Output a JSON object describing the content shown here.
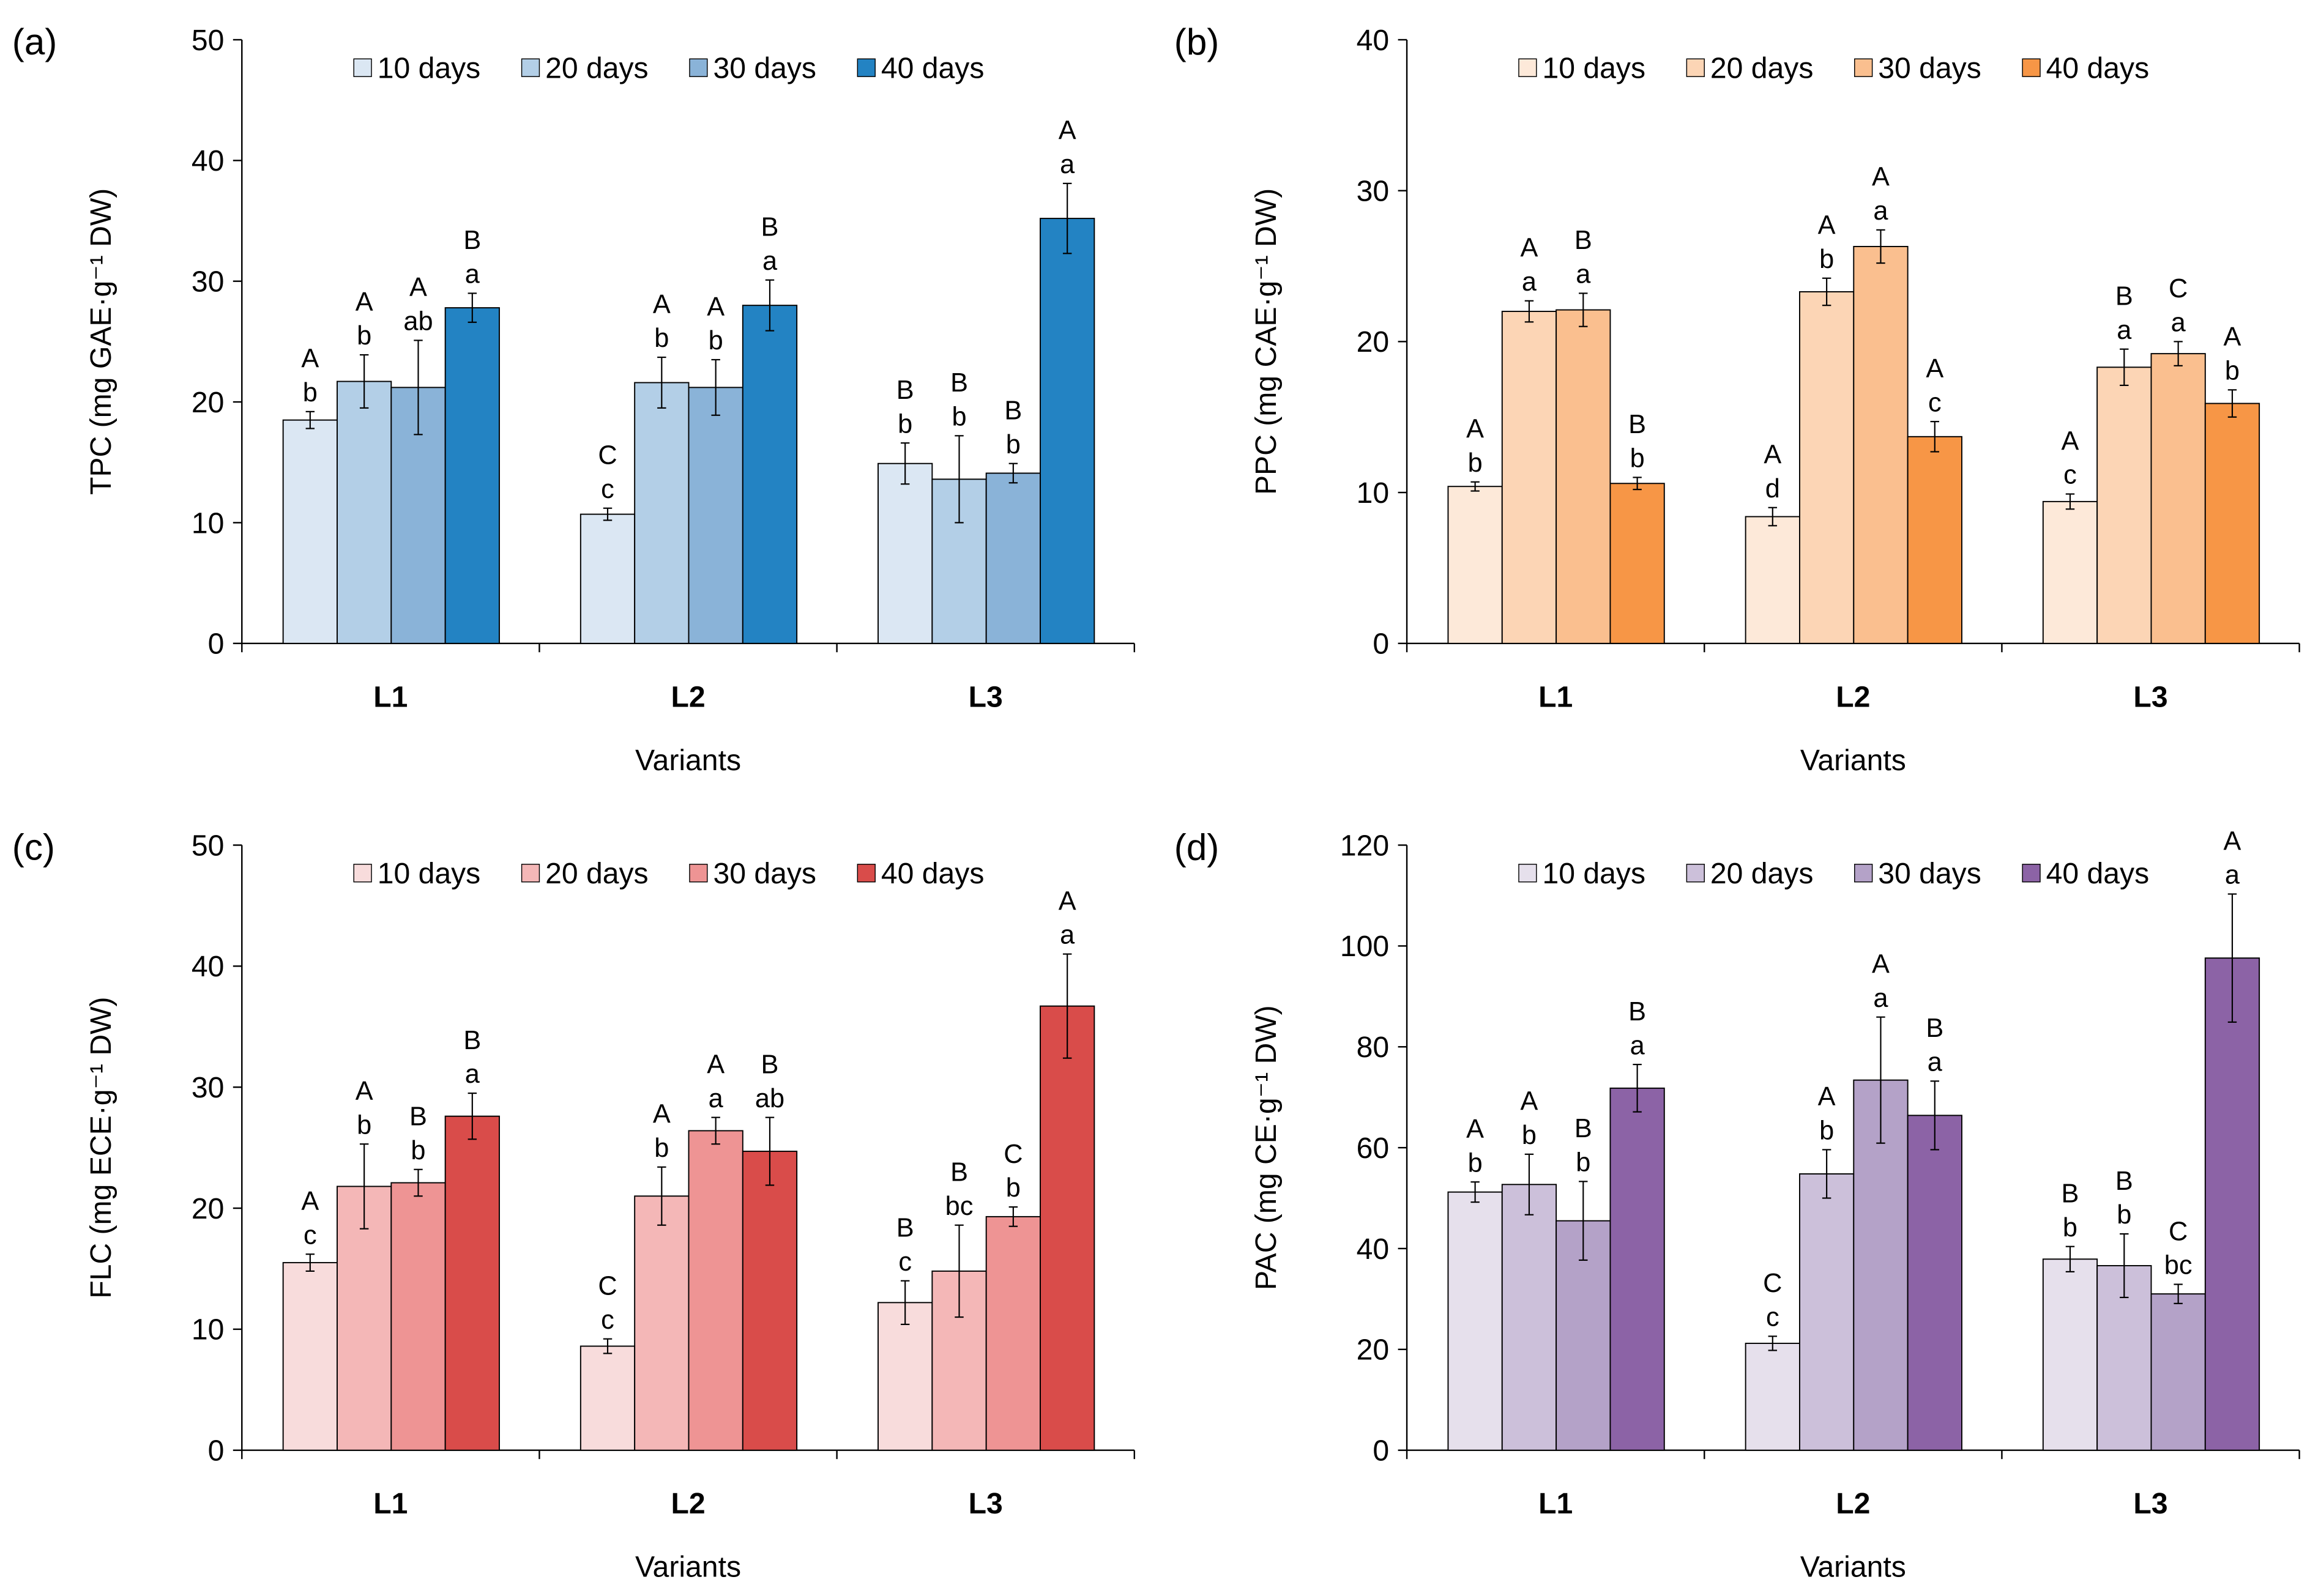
{
  "chart_data": [
    {
      "type": "bar",
      "panel_label": "(a)",
      "panel_label_letter": "a",
      "ylabel": "TPC (mg GAE·g⁻¹ DW)",
      "xlabel": "Variants",
      "categories": [
        "L1",
        "L2",
        "L3"
      ],
      "ylim": [
        0,
        50
      ],
      "yticks": [
        0,
        10,
        20,
        30,
        40,
        50
      ],
      "legend_position": "top",
      "grid": false,
      "series": [
        {
          "name": "10 days",
          "color": "#dbe7f3",
          "values": [
            18.5,
            10.7,
            14.9
          ],
          "errors": [
            0.7,
            0.5,
            1.7
          ],
          "letters_upper": [
            "A",
            "C",
            "B"
          ],
          "letters_lower": [
            "b",
            "c",
            "b"
          ]
        },
        {
          "name": "20 days",
          "color": "#b3cfe7",
          "values": [
            21.7,
            21.6,
            13.6
          ],
          "errors": [
            2.2,
            2.1,
            3.6
          ],
          "letters_upper": [
            "A",
            "A",
            "B"
          ],
          "letters_lower": [
            "b",
            "b",
            "b"
          ]
        },
        {
          "name": "30 days",
          "color": "#8ab3d8",
          "values": [
            21.2,
            21.2,
            14.1
          ],
          "errors": [
            3.9,
            2.3,
            0.8
          ],
          "letters_upper": [
            "A",
            "A",
            "B"
          ],
          "letters_lower": [
            "ab",
            "b",
            "b"
          ]
        },
        {
          "name": "40 days",
          "color": "#2383c3",
          "values": [
            27.8,
            28.0,
            35.2
          ],
          "errors": [
            1.2,
            2.1,
            2.9
          ],
          "letters_upper": [
            "B",
            "B",
            "A"
          ],
          "letters_lower": [
            "a",
            "a",
            "a"
          ]
        }
      ]
    },
    {
      "type": "bar",
      "panel_label": "(b)",
      "panel_label_letter": "b",
      "ylabel": "PPC (mg CAE·g⁻¹ DW)",
      "xlabel": "Variants",
      "categories": [
        "L1",
        "L2",
        "L3"
      ],
      "ylim": [
        0,
        40
      ],
      "yticks": [
        0,
        10,
        20,
        30,
        40
      ],
      "legend_position": "top",
      "grid": false,
      "series": [
        {
          "name": "10 days",
          "color": "#fde9d9",
          "values": [
            10.4,
            8.4,
            9.4
          ],
          "errors": [
            0.3,
            0.6,
            0.5
          ],
          "letters_upper": [
            "A",
            "A",
            "A"
          ],
          "letters_lower": [
            "b",
            "d",
            "c"
          ]
        },
        {
          "name": "20 days",
          "color": "#fcd5b5",
          "values": [
            22.0,
            23.3,
            18.3
          ],
          "errors": [
            0.7,
            0.9,
            1.2
          ],
          "letters_upper": [
            "A",
            "A",
            "B"
          ],
          "letters_lower": [
            "a",
            "b",
            "a"
          ]
        },
        {
          "name": "30 days",
          "color": "#fabf8f",
          "values": [
            22.1,
            26.3,
            19.2
          ],
          "errors": [
            1.1,
            1.1,
            0.8
          ],
          "letters_upper": [
            "B",
            "A",
            "C"
          ],
          "letters_lower": [
            "a",
            "a",
            "a"
          ]
        },
        {
          "name": "40 days",
          "color": "#f79646",
          "values": [
            10.6,
            13.7,
            15.9
          ],
          "errors": [
            0.4,
            1.0,
            0.9
          ],
          "letters_upper": [
            "B",
            "A",
            "A"
          ],
          "letters_lower": [
            "b",
            "c",
            "b"
          ]
        }
      ]
    },
    {
      "type": "bar",
      "panel_label": "(c)",
      "panel_label_letter": "c",
      "ylabel": "FLC (mg ECE·g⁻¹ DW)",
      "xlabel": "Variants",
      "categories": [
        "L1",
        "L2",
        "L3"
      ],
      "ylim": [
        0,
        50
      ],
      "yticks": [
        0,
        10,
        20,
        30,
        40,
        50
      ],
      "legend_position": "top",
      "grid": false,
      "series": [
        {
          "name": "10 days",
          "color": "#f8dcdc",
          "values": [
            15.5,
            8.6,
            12.2
          ],
          "errors": [
            0.7,
            0.6,
            1.8
          ],
          "letters_upper": [
            "A",
            "C",
            "B"
          ],
          "letters_lower": [
            "c",
            "c",
            "c"
          ]
        },
        {
          "name": "20 days",
          "color": "#f4b7b7",
          "values": [
            21.8,
            21.0,
            14.8
          ],
          "errors": [
            3.5,
            2.4,
            3.8
          ],
          "letters_upper": [
            "A",
            "A",
            "B"
          ],
          "letters_lower": [
            "b",
            "b",
            "bc"
          ]
        },
        {
          "name": "30 days",
          "color": "#ee9494",
          "values": [
            22.1,
            26.4,
            19.3
          ],
          "errors": [
            1.1,
            1.1,
            0.8
          ],
          "letters_upper": [
            "B",
            "A",
            "C"
          ],
          "letters_lower": [
            "b",
            "a",
            "b"
          ]
        },
        {
          "name": "40 days",
          "color": "#d94c4a",
          "values": [
            27.6,
            24.7,
            36.7
          ],
          "errors": [
            1.9,
            2.8,
            4.3
          ],
          "letters_upper": [
            "B",
            "B",
            "A"
          ],
          "letters_lower": [
            "a",
            "ab",
            "a"
          ]
        }
      ]
    },
    {
      "type": "bar",
      "panel_label": "(d)",
      "panel_label_letter": "d",
      "ylabel": "PAC (mg CE·g⁻¹ DW)",
      "xlabel": "Variants",
      "categories": [
        "L1",
        "L2",
        "L3"
      ],
      "ylim": [
        0,
        120
      ],
      "yticks": [
        0,
        20,
        40,
        60,
        80,
        100,
        120
      ],
      "legend_position": "top",
      "grid": false,
      "series": [
        {
          "name": "10 days",
          "color": "#e6e0ec",
          "values": [
            51.2,
            21.2,
            37.9
          ],
          "errors": [
            2.0,
            1.4,
            2.5
          ],
          "letters_upper": [
            "A",
            "C",
            "B"
          ],
          "letters_lower": [
            "b",
            "c",
            "b"
          ]
        },
        {
          "name": "20 days",
          "color": "#ccc0da",
          "values": [
            52.7,
            54.8,
            36.6
          ],
          "errors": [
            6.0,
            4.8,
            6.3
          ],
          "letters_upper": [
            "A",
            "A",
            "B"
          ],
          "letters_lower": [
            "b",
            "b",
            "b"
          ]
        },
        {
          "name": "30 days",
          "color": "#b4a2c8",
          "values": [
            45.5,
            73.4,
            31.0
          ],
          "errors": [
            7.8,
            12.5,
            1.9
          ],
          "letters_upper": [
            "B",
            "A",
            "C"
          ],
          "letters_lower": [
            "b",
            "a",
            "bc"
          ]
        },
        {
          "name": "40 days",
          "color": "#8c63a6",
          "values": [
            71.8,
            66.4,
            97.6
          ],
          "errors": [
            4.7,
            6.8,
            12.7
          ],
          "letters_upper": [
            "B",
            "B",
            "A"
          ],
          "letters_lower": [
            "a",
            "a",
            "a"
          ]
        }
      ]
    }
  ]
}
